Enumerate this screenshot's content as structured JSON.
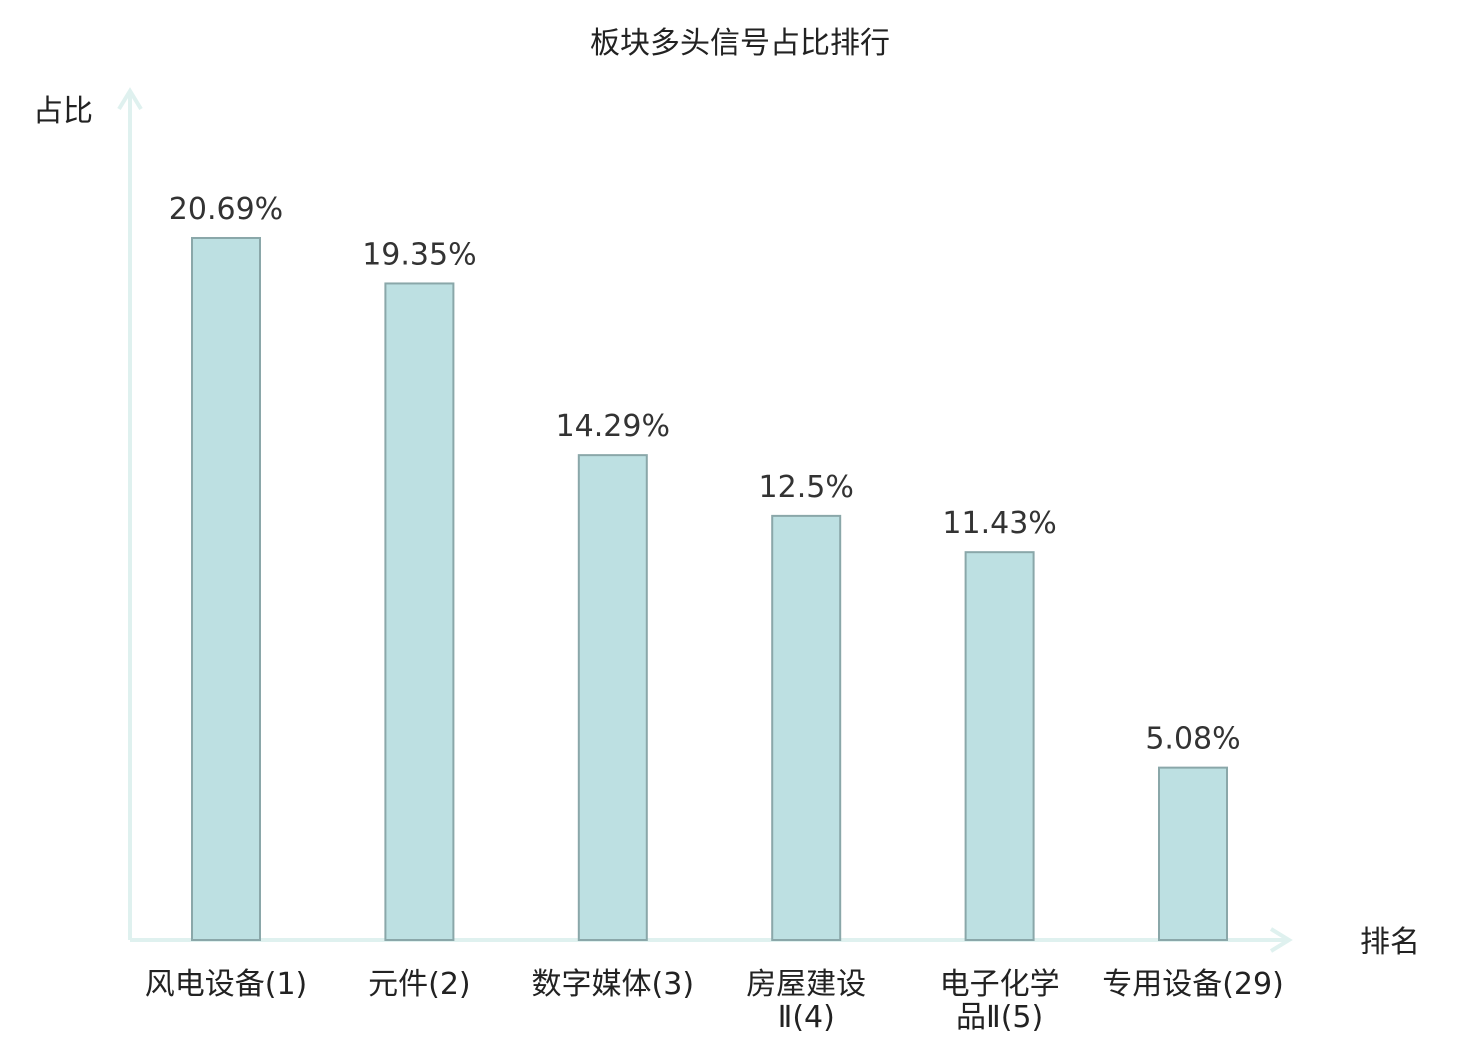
{
  "chart_data": {
    "type": "bar",
    "title": "板块多头信号占比排行",
    "ylabel": "占比",
    "xlabel": "排名",
    "ylim": [
      0,
      24
    ],
    "grid": false,
    "categories": [
      {
        "name": "风电设备",
        "rank": "(1)",
        "lines": [
          "风电设备(1)"
        ]
      },
      {
        "name": "元件",
        "rank": "(2)",
        "lines": [
          "元件(2)"
        ]
      },
      {
        "name": "数字媒体",
        "rank": "(3)",
        "lines": [
          "数字媒体(3)"
        ]
      },
      {
        "name": "房屋建设Ⅱ",
        "rank": "(4)",
        "lines": [
          "房屋建设",
          "Ⅱ(4)"
        ]
      },
      {
        "name": "电子化学品Ⅱ",
        "rank": "(5)",
        "lines": [
          "电子化学",
          "品Ⅱ(5)"
        ]
      },
      {
        "name": "专用设备",
        "rank": "(29)",
        "lines": [
          "专用设备(29)"
        ],
        "highlight": true
      }
    ],
    "values": [
      20.69,
      19.35,
      14.29,
      12.5,
      11.43,
      5.08
    ],
    "value_labels": [
      "20.69%",
      "19.35%",
      "14.29%",
      "12.5%",
      "11.43%",
      "5.08%"
    ]
  },
  "colors": {
    "bar_fill": "#bde0e2",
    "bar_stroke": "#8aa7a9",
    "axis": "#dff1ef",
    "highlight_text": "#e0201e",
    "text": "#222222"
  }
}
